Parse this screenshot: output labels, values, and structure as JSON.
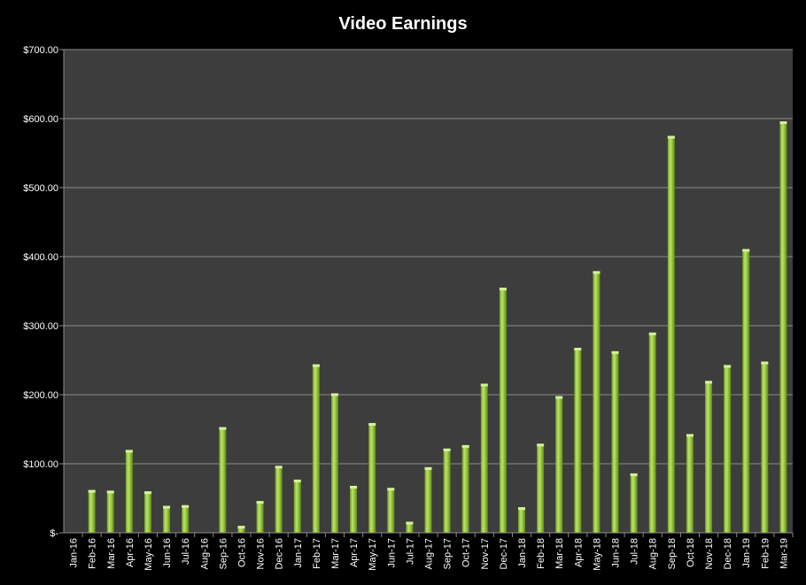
{
  "chart_data": {
    "type": "bar",
    "title": "Video Earnings",
    "xlabel": "",
    "ylabel": "",
    "ylim": [
      0,
      700
    ],
    "ytick_values": [
      0,
      100,
      200,
      300,
      400,
      500,
      600,
      700
    ],
    "ytick_labels": [
      "$-",
      "$100.00",
      "$200.00",
      "$300.00",
      "$400.00",
      "$500.00",
      "$600.00",
      "$700.00"
    ],
    "grid": true,
    "legend": "none",
    "categories": [
      "Jan-16",
      "Feb-16",
      "Mar-16",
      "Apr-16",
      "May-16",
      "Jun-16",
      "Jul-16",
      "Aug-16",
      "Sep-16",
      "Oct-16",
      "Nov-16",
      "Dec-16",
      "Jan-17",
      "Feb-17",
      "Mar-17",
      "Apr-17",
      "May-17",
      "Jun-17",
      "Jul-17",
      "Aug-17",
      "Sep-17",
      "Oct-17",
      "Nov-17",
      "Dec-17",
      "Jan-18",
      "Feb-18",
      "Mar-18",
      "Apr-18",
      "May-18",
      "Jun-18",
      "Jul-18",
      "Aug-18",
      "Sep-18",
      "Oct-18",
      "Nov-18",
      "Dec-18",
      "Jan-19",
      "Feb-19",
      "Mar-19"
    ],
    "values": [
      0,
      62,
      61,
      120,
      60,
      39,
      40,
      0,
      153,
      10,
      46,
      97,
      77,
      244,
      202,
      68,
      159,
      65,
      16,
      95,
      122,
      127,
      216,
      355,
      37,
      129,
      198,
      268,
      379,
      263,
      86,
      290,
      575,
      143,
      220,
      243,
      411,
      248,
      596
    ],
    "colors": {
      "background": "#000000",
      "plot_area": "#3d3d3d",
      "bar_light": "#bde36a",
      "bar_mid": "#9acc3f",
      "bar_dark": "#6e9a24",
      "bar_top": "#d6f09a",
      "gridline": "#8c8c8c",
      "text": "#ffffff"
    }
  }
}
